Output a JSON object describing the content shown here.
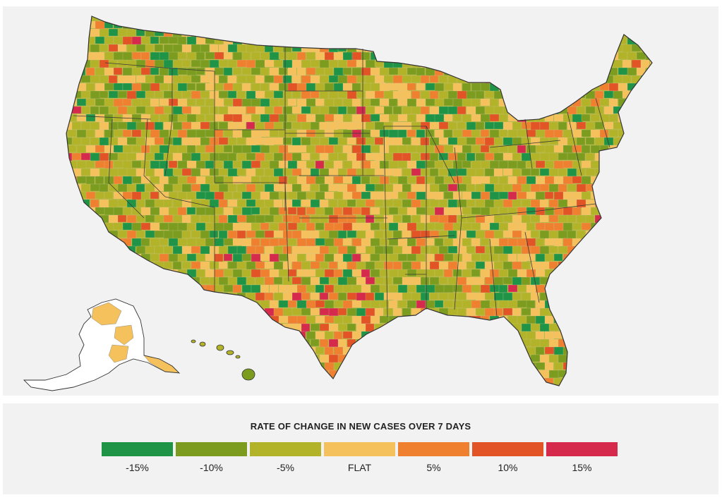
{
  "legend": {
    "title": "RATE OF CHANGE IN NEW CASES OVER 7 DAYS",
    "items": [
      {
        "label": "-15%",
        "color": "#1f9447"
      },
      {
        "label": "-10%",
        "color": "#7c9c1f"
      },
      {
        "label": "-5%",
        "color": "#b2b328"
      },
      {
        "label": "FLAT",
        "color": "#f5c15c"
      },
      {
        "label": "5%",
        "color": "#ee8030"
      },
      {
        "label": "10%",
        "color": "#e25325"
      },
      {
        "label": "15%",
        "color": "#d62a4d"
      }
    ]
  },
  "map": {
    "region": "United States (counties)",
    "background_color": "#f2f2f2",
    "border_color": "#333333"
  }
}
